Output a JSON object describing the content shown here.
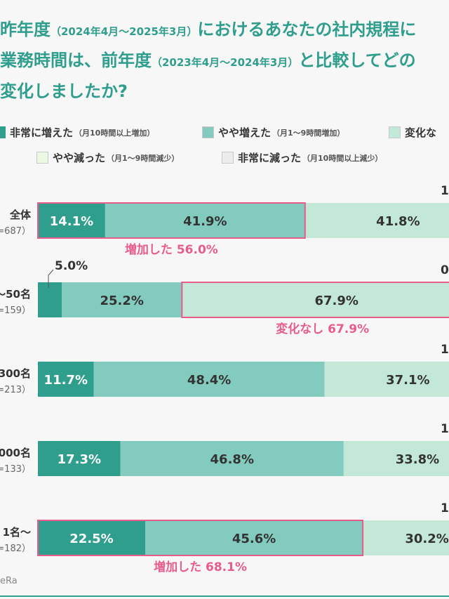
{
  "title": {
    "lines": [
      [
        {
          "t": "昨年度",
          "s": "big"
        },
        {
          "t": "（2024年4月～2025年3月）",
          "s": "small"
        },
        {
          "t": "における",
          "s": "big"
        },
        {
          "t": "あなたの社内規程に",
          "s": "big"
        }
      ],
      [
        {
          "t": "業務時間は、前年度",
          "s": "big"
        },
        {
          "t": "（2023年4月～2024年3月）",
          "s": "small"
        },
        {
          "t": "と比較してどの",
          "s": "big"
        }
      ],
      [
        {
          "t": "変化しましたか?",
          "s": "big"
        }
      ]
    ]
  },
  "legend": [
    {
      "label": "非常に増えた",
      "sub": "（月10時間以上増加）",
      "color": "#2f9e8c"
    },
    {
      "label": "やや増えた",
      "sub": "（月1～9時間増加）",
      "color": "#84cbbf"
    },
    {
      "label": "変化な",
      "sub": "",
      "color": "#c3e8d8"
    },
    {
      "label": "やや減った",
      "sub": "（月1～9時間減少）",
      "color": "#ebf8e3"
    },
    {
      "label": "非常に減った",
      "sub": "（月10時間以上減少）",
      "color": "#ececec"
    }
  ],
  "chart_data": {
    "type": "bar",
    "orientation": "horizontal-stacked",
    "categories": [
      {
        "label": "全体",
        "sub": "=687）"
      },
      {
        "label": "～50名",
        "sub": "=159）"
      },
      {
        "label": "300名",
        "sub": "=213）"
      },
      {
        "label": "000名",
        "sub": "=133）"
      },
      {
        "label": "1名～",
        "sub": "=182）"
      }
    ],
    "series": [
      {
        "name": "非常に増えた",
        "color": "#2f9e8c",
        "values": [
          14.1,
          5.0,
          11.7,
          17.3,
          22.5
        ]
      },
      {
        "name": "やや増えた",
        "color": "#84cbbf",
        "values": [
          41.9,
          25.2,
          48.4,
          46.8,
          45.6
        ]
      },
      {
        "name": "変化な",
        "color": "#c3e8d8",
        "values": [
          41.8,
          67.9,
          37.1,
          33.8,
          30.2
        ]
      }
    ],
    "value_labels": [
      [
        "14.1%",
        "41.9%",
        "41.8%"
      ],
      [
        "5.0%",
        "25.2%",
        "67.9%"
      ],
      [
        "11.7%",
        "48.4%",
        "37.1%"
      ],
      [
        "17.3%",
        "46.8%",
        "33.8%"
      ],
      [
        "22.5%",
        "45.6%",
        "30.2%"
      ]
    ],
    "right_edge_labels": [
      "1",
      "0",
      "1.",
      "1",
      "1"
    ],
    "highlights": [
      {
        "row": 0,
        "from_series": 0,
        "to_series": 1,
        "text": "増加した 56.0%"
      },
      {
        "row": 1,
        "from_series": 2,
        "to_series": 2,
        "text": "変化なし 67.9%"
      },
      {
        "row": 4,
        "from_series": 0,
        "to_series": 1,
        "text": "増加した 68.1%"
      }
    ],
    "highlight_color": "#e85c8a",
    "xlim": [
      0,
      100
    ]
  },
  "source": "eRa"
}
